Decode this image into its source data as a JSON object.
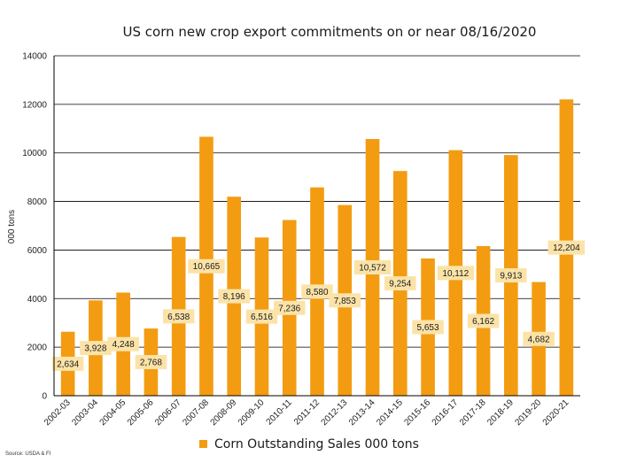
{
  "chart_data": {
    "type": "bar",
    "title": "US corn new crop export commitments on or near 08/16/2020",
    "ylabel": "000 tons",
    "xlabel": "",
    "ylim": [
      0,
      14000
    ],
    "yticks": [
      0,
      2000,
      4000,
      6000,
      8000,
      10000,
      12000,
      14000
    ],
    "grid": true,
    "legend_position": "bottom",
    "categories": [
      "2002-03",
      "2003-04",
      "2004-05",
      "2005-06",
      "2006-07",
      "2007-08",
      "2008-09",
      "2009-10",
      "2010-11",
      "2011-12",
      "2012-13",
      "2013-14",
      "2014-15",
      "2015-16",
      "2016-17",
      "2017-18",
      "2018-19",
      "2019-20",
      "2020-21"
    ],
    "series": [
      {
        "name": "Corn Outstanding Sales 000 tons",
        "color": "#F39C12",
        "values": [
          2634,
          3928,
          4248,
          2768,
          6538,
          10665,
          8196,
          6516,
          7236,
          8580,
          7853,
          10572,
          9254,
          5653,
          10112,
          6162,
          9913,
          4682,
          12204
        ]
      }
    ],
    "data_labels": [
      "2,634",
      "3,928",
      "4,248",
      "2,768",
      "6,538",
      "10,665",
      "8,196",
      "6,516",
      "7,236",
      "8,580",
      "7,853",
      "10,572",
      "9,254",
      "5,653",
      "10,112",
      "6,162",
      "9,913",
      "4,682",
      "12,204"
    ],
    "label_color": "#FBE3A8",
    "source": "Source: USDA & FI"
  }
}
